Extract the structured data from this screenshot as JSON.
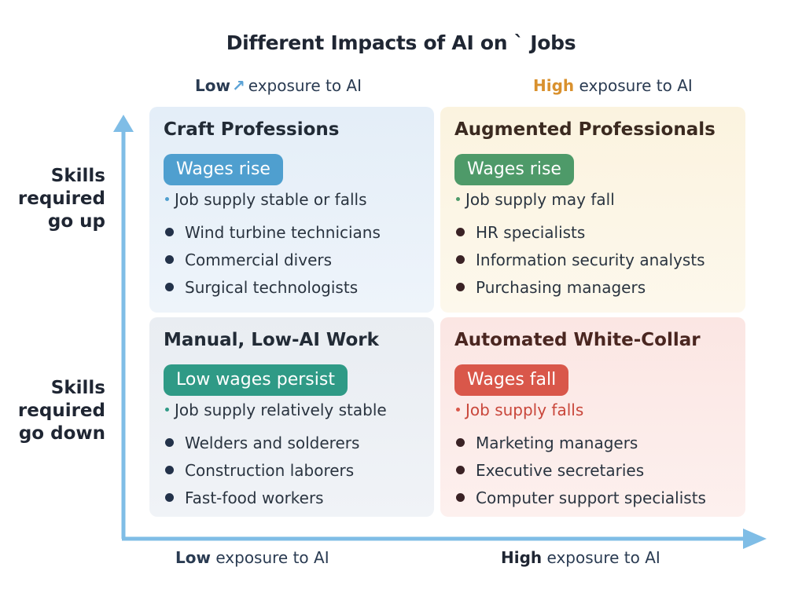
{
  "title": "Different Impacts of AI on ` Jobs",
  "top_axis": {
    "low": {
      "strong": "Low",
      "rest": "exposure to AI"
    },
    "high": {
      "strong": "High",
      "rest": "exposure to AI"
    }
  },
  "bottom_axis": {
    "low": {
      "strong": "Low",
      "rest": "exposure to AI"
    },
    "high": {
      "strong": "High",
      "rest": "exposure to AI"
    }
  },
  "side_axis": {
    "up": [
      "Skills",
      "required",
      "go up"
    ],
    "down": [
      "Skills",
      "required",
      "go down"
    ]
  },
  "colors": {
    "axis": "#7fbde6",
    "high_accent": "#d9912e"
  },
  "quadrants": {
    "top_left": {
      "title": "Craft Professions",
      "badge": "Wages rise",
      "supply": "Job supply stable or falls",
      "items": [
        "Wind turbine technicians",
        "Commercial divers",
        "Surgical technologists"
      ]
    },
    "top_right": {
      "title": "Augmented Professionals",
      "badge": "Wages rise",
      "supply": "Job supply may fall",
      "items": [
        "HR specialists",
        "Information security analysts",
        "Purchasing managers"
      ]
    },
    "bottom_left": {
      "title": "Manual, Low-AI Work",
      "badge": "Low wages persist",
      "supply": "Job supply relatively stable",
      "items": [
        "Welders and solderers",
        "Construction laborers",
        "Fast-food workers"
      ]
    },
    "bottom_right": {
      "title": "Automated White-Collar",
      "badge": "Wages fall",
      "supply": "Job supply falls",
      "items": [
        "Marketing managers",
        "Executive secretaries",
        "Computer support specialists"
      ]
    }
  }
}
